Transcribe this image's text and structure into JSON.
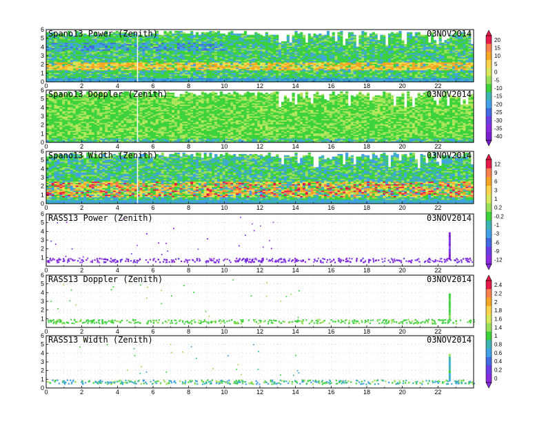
{
  "chart_data": [
    {
      "type": "heatmap",
      "title": "Spano13 Power (Zenith)",
      "date": "03NOV2014",
      "x_ticks": [
        "0",
        "2",
        "4",
        "6",
        "8",
        "10",
        "12",
        "14",
        "16",
        "18",
        "20",
        "22"
      ],
      "y_ticks": [
        "0",
        "1",
        "2",
        "3",
        "4",
        "5",
        "6"
      ],
      "xlim": [
        0,
        24
      ],
      "ylim": [
        0,
        6
      ],
      "grid": false,
      "mode": "spano_power"
    },
    {
      "type": "heatmap",
      "title": "Spano13 Doppler (Zenith)",
      "date": "03NOV2014",
      "x_ticks": [
        "0",
        "2",
        "4",
        "6",
        "8",
        "10",
        "12",
        "14",
        "16",
        "18",
        "20",
        "22"
      ],
      "y_ticks": [
        "0",
        "1",
        "2",
        "3",
        "4",
        "5",
        "6"
      ],
      "xlim": [
        0,
        24
      ],
      "ylim": [
        0,
        6
      ],
      "grid": false,
      "mode": "spano_doppler"
    },
    {
      "type": "heatmap",
      "title": "Spano13 Width (Zenith)",
      "date": "03NOV2014",
      "x_ticks": [
        "0",
        "2",
        "4",
        "6",
        "8",
        "10",
        "12",
        "14",
        "16",
        "18",
        "20",
        "22"
      ],
      "y_ticks": [
        "0",
        "1",
        "2",
        "3",
        "4",
        "5",
        "6"
      ],
      "xlim": [
        0,
        24
      ],
      "ylim": [
        0,
        6
      ],
      "grid": false,
      "mode": "spano_width"
    },
    {
      "type": "heatmap",
      "title": "RASS13 Power (Zenith)",
      "date": "03NOV2014",
      "x_ticks": [
        "0",
        "2",
        "4",
        "6",
        "8",
        "10",
        "12",
        "14",
        "16",
        "18",
        "20",
        "22"
      ],
      "y_ticks": [
        "1",
        "2",
        "3",
        "4",
        "5",
        "6"
      ],
      "xlim": [
        0,
        24
      ],
      "ylim": [
        0,
        6
      ],
      "grid": true,
      "mode": "rass_power"
    },
    {
      "type": "heatmap",
      "title": "RASS13 Doppler (Zenith)",
      "date": "03NOV2014",
      "x_ticks": [
        "0",
        "2",
        "4",
        "6",
        "8",
        "10",
        "12",
        "14",
        "16",
        "18",
        "20",
        "22"
      ],
      "y_ticks": [
        "1",
        "2",
        "3",
        "4",
        "5",
        "6"
      ],
      "xlim": [
        0,
        24
      ],
      "ylim": [
        0,
        6
      ],
      "grid": true,
      "mode": "rass_doppler"
    },
    {
      "type": "heatmap",
      "title": "RASS13 Width (Zenith)",
      "date": "03NOV2014",
      "x_ticks": [
        "0",
        "2",
        "4",
        "6",
        "8",
        "10",
        "12",
        "14",
        "16",
        "18",
        "20",
        "22"
      ],
      "y_ticks": [
        "0",
        "1",
        "2",
        "3",
        "4",
        "5",
        "6"
      ],
      "xlim": [
        0,
        24
      ],
      "ylim": [
        0,
        6
      ],
      "grid": true,
      "mode": "rass_width"
    }
  ],
  "colorbars": [
    {
      "labels": [
        "20",
        "15",
        "10",
        "5",
        "0",
        "-5",
        "-10",
        "-15",
        "-20",
        "-25",
        "-30",
        "-35",
        "-40"
      ],
      "colors": [
        "#e6194b",
        "#ff7f50",
        "#f5a623",
        "#ffd24a",
        "#d8e85a",
        "#9be05a",
        "#3cd23c",
        "#3cb4b4",
        "#41a0e6",
        "#4169e1",
        "#6a3de8",
        "#8a2be2",
        "#7a1fd0"
      ]
    },
    {
      "labels": [
        "12",
        "9",
        "6",
        "3",
        "1",
        "0.2",
        "-0.2",
        "-1",
        "-3",
        "-6",
        "-9",
        "-12"
      ],
      "colors": [
        "#e6194b",
        "#ff7f50",
        "#f5a623",
        "#ffd24a",
        "#d8e85a",
        "#9be05a",
        "#3cd23c",
        "#3cb4b4",
        "#41a0e6",
        "#4169e1",
        "#6a3de8",
        "#8a2be2"
      ]
    },
    {
      "labels": [
        "2.4",
        "2.2",
        "2",
        "1.8",
        "1.6",
        "1.4",
        "1",
        "0.8",
        "0.6",
        "0.4",
        "0.2",
        "0"
      ],
      "colors": [
        "#e6194b",
        "#ff7f50",
        "#f5a623",
        "#ffd24a",
        "#d8e85a",
        "#9be05a",
        "#3cd23c",
        "#3cb4b4",
        "#41a0e6",
        "#4169e1",
        "#6a3de8",
        "#8a2be2"
      ]
    }
  ]
}
